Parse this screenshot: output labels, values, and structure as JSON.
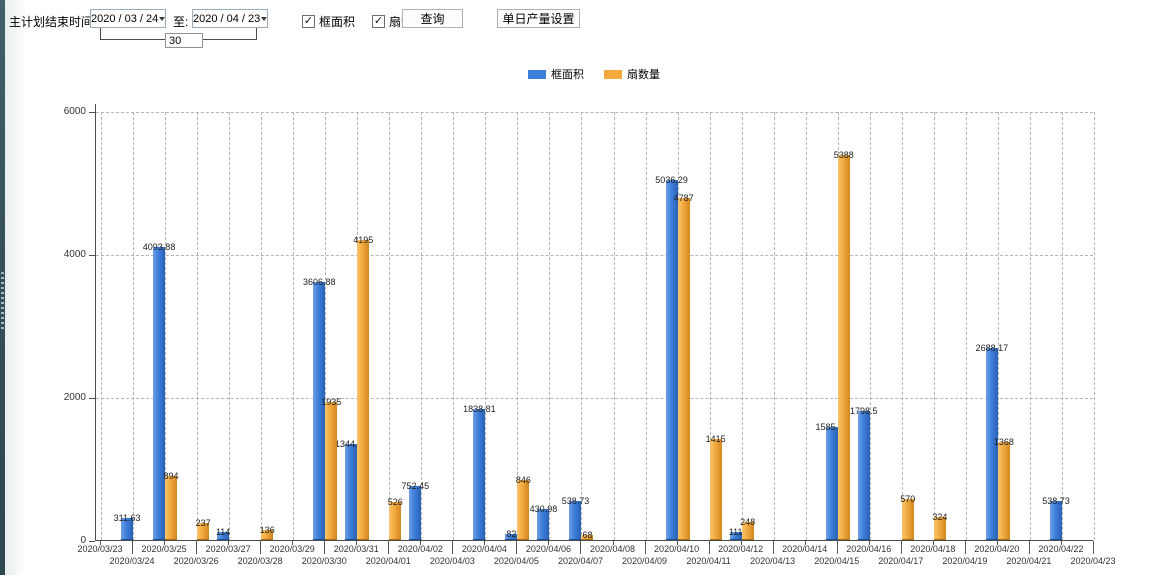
{
  "toolbar": {
    "end_time_label": "主计划结束时间:",
    "start_date_value": "2020 / 03 / 24",
    "to_label": "至:",
    "end_date_value": "2020 / 04 / 23",
    "interval_days_value": "30",
    "filters": [
      {
        "label": "框面积",
        "checked": true
      },
      {
        "label": "扇数量",
        "checked": true
      }
    ],
    "query_button_label": "查询",
    "daily_output_button_label": "单日产量设置"
  },
  "legend": {
    "items": [
      {
        "label": "框面积",
        "color": "#3d7edb"
      },
      {
        "label": "扇数量",
        "color": "#f3a93e"
      }
    ],
    "position": "top-center"
  },
  "chart_data": {
    "type": "bar",
    "title": "",
    "xlabel": "",
    "ylabel": "",
    "ylim": [
      0,
      6000
    ],
    "yticks": [
      0,
      2000,
      4000,
      6000
    ],
    "grid": true,
    "legend_position": "top",
    "categories": [
      "2020/03/23",
      "2020/03/24",
      "2020/03/25",
      "2020/03/26",
      "2020/03/27",
      "2020/03/28",
      "2020/03/29",
      "2020/03/30",
      "2020/03/31",
      "2020/04/01",
      "2020/04/02",
      "2020/04/03",
      "2020/04/04",
      "2020/04/05",
      "2020/04/06",
      "2020/04/07",
      "2020/04/08",
      "2020/04/09",
      "2020/04/10",
      "2020/04/11",
      "2020/04/12",
      "2020/04/13",
      "2020/04/14",
      "2020/04/15",
      "2020/04/16",
      "2020/04/17",
      "2020/04/18",
      "2020/04/19",
      "2020/04/20",
      "2020/04/21",
      "2020/04/22",
      "2020/04/23"
    ],
    "series": [
      {
        "name": "框面积",
        "color": "#3d7edb",
        "values": [
          null,
          311.63,
          4093.88,
          null,
          114,
          null,
          null,
          3606.88,
          1344.95,
          null,
          752.45,
          null,
          1838.81,
          82,
          430.98,
          538.73,
          null,
          null,
          5036.29,
          null,
          111,
          null,
          null,
          1585.96,
          1798.5,
          null,
          null,
          null,
          2688.17,
          null,
          538.73,
          null
        ]
      },
      {
        "name": "扇数量",
        "color": "#f3a93e",
        "values": [
          null,
          null,
          894,
          237,
          null,
          136,
          null,
          1935,
          4195,
          526,
          null,
          null,
          null,
          846,
          null,
          68,
          null,
          null,
          4787,
          1415,
          248,
          null,
          null,
          5388,
          null,
          570,
          324,
          null,
          1368,
          null,
          null,
          null
        ]
      }
    ]
  }
}
